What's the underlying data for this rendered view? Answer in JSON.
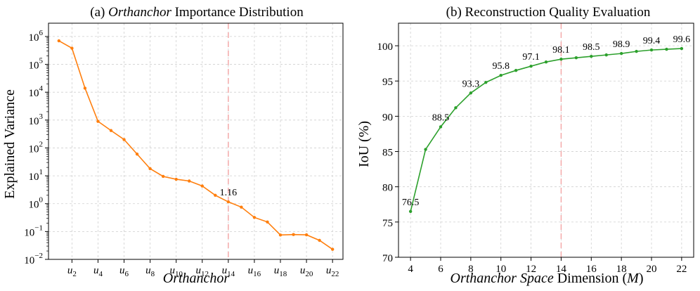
{
  "chart_data": [
    {
      "type": "line",
      "title_prefix": "(a) ",
      "title_italic": "Orthanchor",
      "title_suffix": " Importance Distribution",
      "xlabel": "Orthanchor",
      "ylabel": "Explained Variance",
      "yscale": "log",
      "ylim": [
        0.01,
        3000000
      ],
      "y_ticks": [
        {
          "base": "10",
          "exp": "−2",
          "value": 0.01
        },
        {
          "base": "10",
          "exp": "−1",
          "value": 0.1
        },
        {
          "base": "10",
          "exp": "0",
          "value": 1
        },
        {
          "base": "10",
          "exp": "1",
          "value": 10
        },
        {
          "base": "10",
          "exp": "2",
          "value": 100
        },
        {
          "base": "10",
          "exp": "3",
          "value": 1000
        },
        {
          "base": "10",
          "exp": "4",
          "value": 10000
        },
        {
          "base": "10",
          "exp": "5",
          "value": 100000
        },
        {
          "base": "10",
          "exp": "6",
          "value": 1000000
        }
      ],
      "x_ticks": [
        {
          "base": "u",
          "sub": "2",
          "value": 2
        },
        {
          "base": "u",
          "sub": "4",
          "value": 4
        },
        {
          "base": "u",
          "sub": "6",
          "value": 6
        },
        {
          "base": "u",
          "sub": "8",
          "value": 8
        },
        {
          "base": "u",
          "sub": "10",
          "value": 10
        },
        {
          "base": "u",
          "sub": "12",
          "value": 12
        },
        {
          "base": "u",
          "sub": "14",
          "value": 14
        },
        {
          "base": "u",
          "sub": "16",
          "value": 16
        },
        {
          "base": "u",
          "sub": "18",
          "value": 18
        },
        {
          "base": "u",
          "sub": "20",
          "value": 20
        },
        {
          "base": "u",
          "sub": "22",
          "value": 22
        }
      ],
      "xlim": [
        0.2,
        22.8
      ],
      "color": "#ff7f0e",
      "x": [
        1,
        2,
        3,
        4,
        5,
        6,
        7,
        8,
        9,
        10,
        11,
        12,
        13,
        14,
        15,
        16,
        17,
        18,
        19,
        20,
        21,
        22
      ],
      "y": [
        700000,
        380000,
        14000,
        900,
        420,
        200,
        60,
        18,
        9.5,
        7.5,
        6.5,
        4.3,
        2.0,
        1.16,
        0.75,
        0.32,
        0.22,
        0.075,
        0.078,
        0.076,
        0.048,
        0.023
      ],
      "vline": 14,
      "annotations": [
        {
          "x": 14,
          "y": 1.16,
          "text": "1.16"
        }
      ],
      "grid": true
    },
    {
      "type": "line",
      "title": "(b) Reconstruction Quality Evaluation",
      "xlabel_italic": "Orthanchor Space",
      "xlabel_mid": " Dimension (",
      "xlabel_var": "M",
      "xlabel_end": ")",
      "ylabel": "IoU (%)",
      "xlim": [
        3.2,
        22.8
      ],
      "ylim": [
        70,
        103.2
      ],
      "x_ticks": [
        "4",
        "6",
        "8",
        "10",
        "12",
        "14",
        "16",
        "18",
        "20",
        "22"
      ],
      "y_ticks": [
        "70",
        "75",
        "80",
        "85",
        "90",
        "95",
        "100"
      ],
      "color": "#2ca02c",
      "x": [
        4,
        5,
        6,
        7,
        8,
        9,
        10,
        11,
        12,
        13,
        14,
        15,
        16,
        17,
        18,
        19,
        20,
        21,
        22
      ],
      "y": [
        76.5,
        85.3,
        88.5,
        91.2,
        93.3,
        94.8,
        95.8,
        96.5,
        97.1,
        97.7,
        98.1,
        98.3,
        98.5,
        98.7,
        98.9,
        99.2,
        99.4,
        99.5,
        99.6
      ],
      "vline": 14,
      "annotations": [
        {
          "x": 4,
          "y": 76.5,
          "text": "76.5"
        },
        {
          "x": 6,
          "y": 88.5,
          "text": "88.5"
        },
        {
          "x": 8,
          "y": 93.3,
          "text": "93.3"
        },
        {
          "x": 10,
          "y": 95.8,
          "text": "95.8"
        },
        {
          "x": 12,
          "y": 97.1,
          "text": "97.1"
        },
        {
          "x": 14,
          "y": 98.1,
          "text": "98.1"
        },
        {
          "x": 16,
          "y": 98.5,
          "text": "98.5"
        },
        {
          "x": 18,
          "y": 98.9,
          "text": "98.9"
        },
        {
          "x": 20,
          "y": 99.4,
          "text": "99.4"
        },
        {
          "x": 22,
          "y": 99.6,
          "text": "99.6"
        }
      ],
      "grid": true
    }
  ]
}
